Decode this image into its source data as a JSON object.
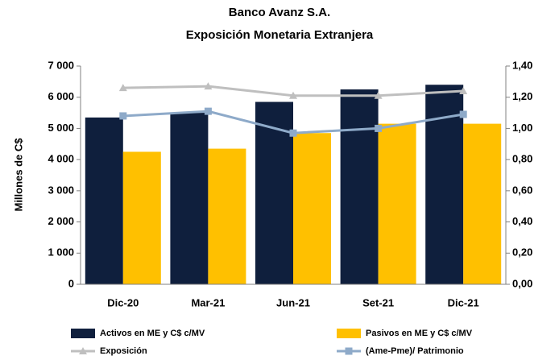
{
  "chart_data": {
    "type": "bar",
    "title": "Banco Avanz S.A.",
    "subtitle": "Exposición Monetaria Extranjera",
    "y_label": "Millones de C$",
    "categories": [
      "Dic-20",
      "Mar-21",
      "Jun-21",
      "Set-21",
      "Dic-21"
    ],
    "series": [
      {
        "name": "Activos en ME y C$ c/MV",
        "color": "#0f1f3d",
        "values": [
          5350,
          5500,
          5850,
          6250,
          6400
        ]
      },
      {
        "name": "Pasivos en ME y C$ c/MV",
        "color": "#ffc000",
        "values": [
          4250,
          4350,
          4850,
          5150,
          5150
        ]
      },
      {
        "name": "Exposición",
        "color": "#bfbfbf",
        "axis": "y2",
        "marker": "triangle",
        "values": [
          1.26,
          1.27,
          1.21,
          1.21,
          1.24
        ]
      },
      {
        "name": "(Ame-Pme)/ Patrimonio",
        "color": "#8eaac9",
        "axis": "y2",
        "marker": "square",
        "values": [
          1.08,
          1.11,
          0.97,
          1.0,
          1.09
        ]
      }
    ],
    "ylim": [
      0,
      7000
    ],
    "yticks": [
      0,
      {
        "value": 1000,
        "label": "1 000"
      },
      {
        "value": 2000,
        "label": "2 000"
      },
      {
        "value": 3000,
        "label": "3 000"
      },
      {
        "value": 4000,
        "label": "4 000"
      },
      {
        "value": 5000,
        "label": "5 000"
      },
      {
        "value": 6000,
        "label": "6 000"
      },
      {
        "value": 7000,
        "label": "7 000"
      }
    ],
    "y2lim": [
      0,
      1.4
    ],
    "y2ticks": [
      {
        "value": 0,
        "label": "0,00"
      },
      {
        "value": 0.2,
        "label": "0,20"
      },
      {
        "value": 0.4,
        "label": "0,40"
      },
      {
        "value": 0.6,
        "label": "0,60"
      },
      {
        "value": 0.8,
        "label": "0,80"
      },
      {
        "value": 1.0,
        "label": "1,00"
      },
      {
        "value": 1.2,
        "label": "1,20"
      },
      {
        "value": 1.4,
        "label": "1,40"
      }
    ],
    "grid": false
  }
}
